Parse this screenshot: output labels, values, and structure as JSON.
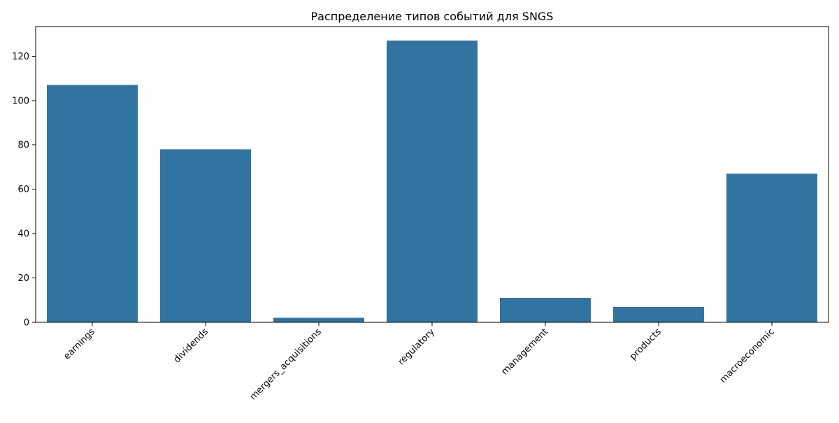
{
  "chart_data": {
    "type": "bar",
    "title": "Распределение типов событий для SNGS",
    "xlabel": "",
    "ylabel": "",
    "categories": [
      "earnings",
      "dividends",
      "mergers_acquisitions",
      "regulatory",
      "management",
      "products",
      "macroeconomic"
    ],
    "values": [
      107,
      78,
      2,
      127,
      11,
      7,
      67
    ],
    "ylim": [
      0,
      133.35
    ],
    "yticks": [
      0,
      20,
      40,
      60,
      80,
      100,
      120
    ],
    "ytick_labels": [
      "0",
      "20",
      "40",
      "60",
      "80",
      "100",
      "120"
    ],
    "bar_color": "#3274a1",
    "grid": false,
    "legend": "none",
    "x_tick_rotation": "45 degrees"
  }
}
